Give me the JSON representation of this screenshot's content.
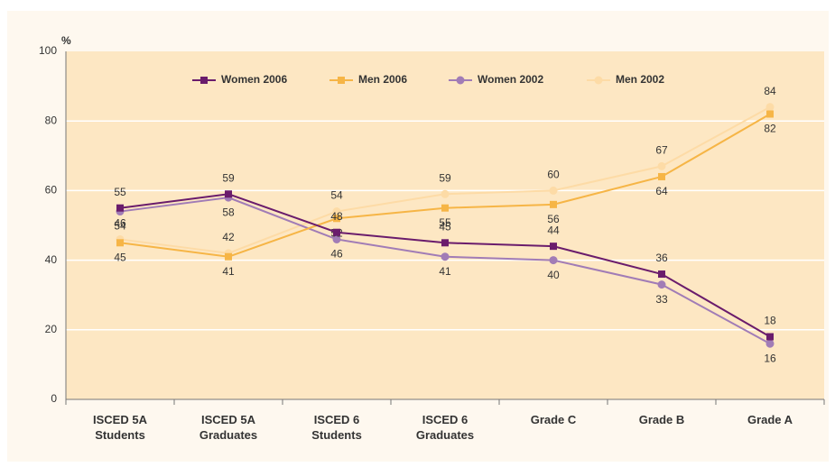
{
  "chart_data": {
    "type": "line",
    "y_label": "%",
    "categories": [
      "ISCED 5A Students",
      "ISCED 5A Graduates",
      "ISCED 6 Students",
      "ISCED 6 Graduates",
      "Grade C",
      "Grade B",
      "Grade A"
    ],
    "series": [
      {
        "name": "Women 2006",
        "color": "#6a1c6c",
        "marker": "square",
        "values": [
          55,
          59,
          48,
          45,
          44,
          36,
          18
        ]
      },
      {
        "name": "Men 2006",
        "color": "#f6b546",
        "marker": "square",
        "values": [
          45,
          41,
          52,
          55,
          56,
          64,
          82
        ]
      },
      {
        "name": "Women 2002",
        "color": "#a17cb6",
        "marker": "circle",
        "values": [
          54,
          58,
          46,
          41,
          40,
          33,
          16
        ]
      },
      {
        "name": "Men 2002",
        "color": "#fddba6",
        "marker": "circle",
        "values": [
          46,
          42,
          54,
          59,
          60,
          67,
          84
        ]
      }
    ],
    "ylim": [
      0,
      100
    ],
    "yticks": [
      0,
      20,
      40,
      60,
      80,
      100
    ],
    "grid": true,
    "legend": "top"
  }
}
